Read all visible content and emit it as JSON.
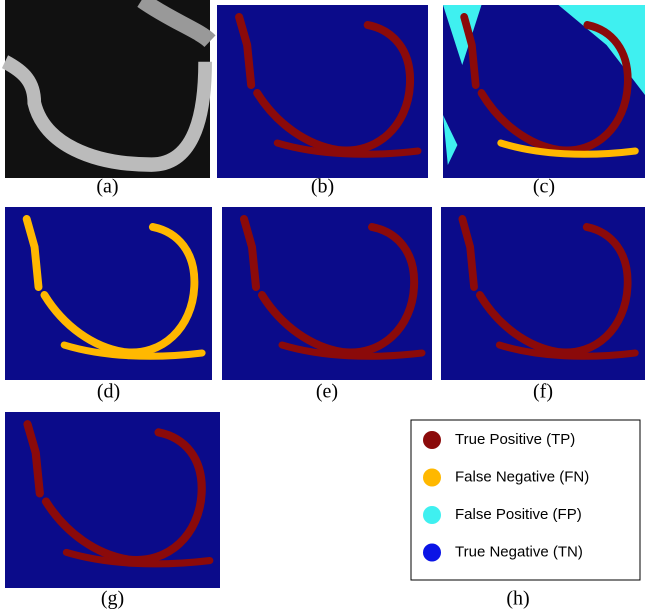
{
  "panels": [
    {
      "label": "(a)"
    },
    {
      "label": "(b)"
    },
    {
      "label": "(c)"
    },
    {
      "label": "(d)"
    },
    {
      "label": "(e)"
    },
    {
      "label": "(f)"
    },
    {
      "label": "(g)"
    }
  ],
  "legend": {
    "label": "(h)",
    "items": [
      {
        "label": "True Positive (TP)",
        "color": "#8b0a0a"
      },
      {
        "label": "False Negative (FN)",
        "color": "#ffb800"
      },
      {
        "label": "False Positive (FP)",
        "color": "#3ff0f0"
      },
      {
        "label": "True Negative (TN)",
        "color": "#0a14e6"
      }
    ]
  }
}
